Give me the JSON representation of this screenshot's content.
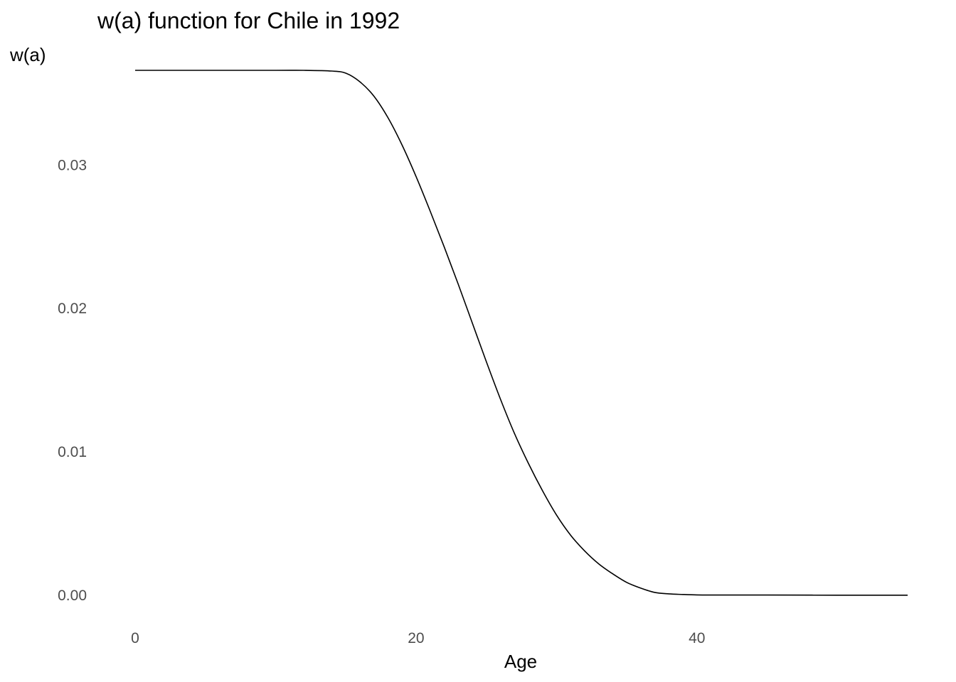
{
  "chart_data": {
    "type": "line",
    "title": "w(a) function for Chile in 1992",
    "xlabel": "Age",
    "ylabel": "w(a)",
    "xlim": [
      0,
      55
    ],
    "ylim": [
      0.0,
      0.0366
    ],
    "x_ticks": [
      0,
      20,
      40
    ],
    "x_tick_labels": [
      "0",
      "20",
      "40"
    ],
    "y_ticks": [
      0.0,
      0.01,
      0.02,
      0.03
    ],
    "y_tick_labels": [
      "0.00",
      "0.01",
      "0.02",
      "0.03"
    ],
    "grid": false,
    "series": [
      {
        "color": "#000000",
        "x": [
          0,
          5,
          10,
          12,
          14,
          15,
          16,
          17,
          18,
          19,
          20,
          21,
          22,
          23,
          24,
          25,
          26,
          27,
          28,
          29,
          30,
          31,
          32,
          33,
          34,
          35,
          36,
          37,
          38,
          39,
          40,
          41,
          42,
          43,
          44,
          45,
          50,
          55
        ],
        "y": [
          0.0366,
          0.0366,
          0.0366,
          0.0366,
          0.03655,
          0.0364,
          0.0358,
          0.0348,
          0.0333,
          0.0314,
          0.0292,
          0.0268,
          0.0243,
          0.0217,
          0.019,
          0.0163,
          0.0137,
          0.0113,
          0.0092,
          0.0073,
          0.0056,
          0.0042,
          0.0031,
          0.0022,
          0.0015,
          0.0009,
          0.0005,
          0.0002,
          0.0001,
          6e-05,
          3e-05,
          2e-05,
          2e-05,
          2e-05,
          2e-05,
          2e-05,
          1e-05,
          1e-05
        ]
      }
    ]
  }
}
